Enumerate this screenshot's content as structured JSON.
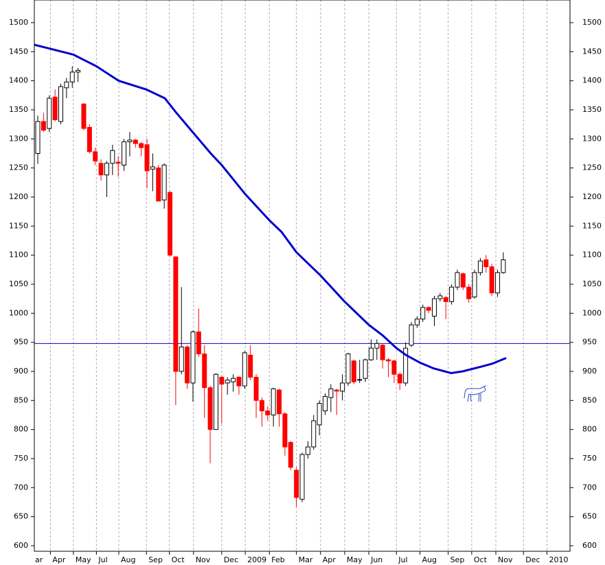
{
  "chart_data": {
    "type": "candlestick",
    "xlim": [
      -0.6,
      92.6
    ],
    "ylim": [
      590.5,
      1539
    ],
    "yticks": [
      600,
      650,
      700,
      750,
      800,
      850,
      900,
      950,
      1000,
      1050,
      1100,
      1150,
      1200,
      1250,
      1300,
      1350,
      1400,
      1450,
      1500
    ],
    "xticks": [
      {
        "value": -1.8,
        "label": "ar"
      },
      {
        "value": 2.2,
        "label": "Apr"
      },
      {
        "value": 6.2,
        "label": "May"
      },
      {
        "value": 10.2,
        "label": "Jul"
      },
      {
        "value": 14.1,
        "label": "Aug"
      },
      {
        "value": 18.9,
        "label": "Sep"
      },
      {
        "value": 22.9,
        "label": "Oct"
      },
      {
        "value": 27.1,
        "label": "Nov"
      },
      {
        "value": 32.0,
        "label": "Dec"
      },
      {
        "value": 36.1,
        "label": "2009"
      },
      {
        "value": 40.3,
        "label": "Feb"
      },
      {
        "value": 45.0,
        "label": "Mar"
      },
      {
        "value": 49.2,
        "label": "Apr"
      },
      {
        "value": 53.4,
        "label": "May"
      },
      {
        "value": 57.6,
        "label": "Jun"
      },
      {
        "value": 62.4,
        "label": "Jul"
      },
      {
        "value": 66.5,
        "label": "Aug"
      },
      {
        "value": 71.4,
        "label": "Sep"
      },
      {
        "value": 75.5,
        "label": "Oct"
      },
      {
        "value": 79.7,
        "label": "Nov"
      },
      {
        "value": 84.5,
        "label": "Dec"
      },
      {
        "value": 88.6,
        "label": "2010"
      }
    ],
    "grid": "x",
    "up_color": "#ffffff",
    "down_color": "#ff0000",
    "open": [
      1275,
      1330,
      1318,
      1372,
      1330,
      1388,
      1398,
      1415,
      1360,
      1320,
      1278,
      1258,
      1238,
      1258,
      1260,
      1255,
      1295,
      1298,
      1292,
      1290,
      1248,
      1250,
      1195,
      1208,
      1097,
      900,
      942,
      880,
      968,
      930,
      872,
      800,
      890,
      880,
      882,
      890,
      875,
      928,
      890,
      850,
      832,
      825,
      868,
      827,
      778,
      730,
      680,
      757,
      770,
      808,
      832,
      855,
      868,
      866,
      880,
      918,
      885,
      888,
      920,
      940,
      945,
      920,
      918,
      895,
      880,
      945,
      980,
      990,
      1010,
      995,
      1025,
      1027,
      1020,
      1045,
      1068,
      1045,
      1028,
      1070,
      1092,
      1080,
      1035,
      1070
    ],
    "high": [
      1340,
      1345,
      1375,
      1385,
      1395,
      1405,
      1425,
      1422,
      1362,
      1325,
      1285,
      1265,
      1262,
      1290,
      1270,
      1300,
      1312,
      1300,
      1295,
      1300,
      1275,
      1255,
      1258,
      1210,
      1098,
      1045,
      945,
      970,
      1008,
      945,
      875,
      897,
      892,
      890,
      895,
      892,
      935,
      945,
      895,
      855,
      840,
      872,
      870,
      830,
      780,
      735,
      760,
      780,
      825,
      850,
      862,
      878,
      870,
      895,
      932,
      920,
      920,
      922,
      955,
      955,
      948,
      923,
      920,
      898,
      950,
      985,
      995,
      1015,
      1012,
      1030,
      1035,
      1030,
      1050,
      1075,
      1070,
      1050,
      1075,
      1095,
      1100,
      1085,
      1075,
      1105
    ],
    "low": [
      1257,
      1312,
      1312,
      1330,
      1325,
      1370,
      1388,
      1398,
      1315,
      1275,
      1255,
      1228,
      1200,
      1238,
      1235,
      1245,
      1270,
      1285,
      1270,
      1215,
      1210,
      1193,
      1180,
      1098,
      842,
      895,
      870,
      848,
      925,
      820,
      742,
      800,
      810,
      860,
      865,
      860,
      870,
      885,
      820,
      805,
      815,
      805,
      805,
      755,
      730,
      667,
      675,
      750,
      765,
      790,
      825,
      830,
      825,
      850,
      875,
      878,
      880,
      882,
      918,
      920,
      905,
      890,
      880,
      868,
      875,
      942,
      975,
      985,
      1000,
      978,
      1020,
      990,
      1015,
      1040,
      1040,
      1018,
      1025,
      1065,
      1070,
      1030,
      1028,
      1068
    ],
    "close": [
      1330,
      1315,
      1370,
      1333,
      1390,
      1398,
      1415,
      1418,
      1318,
      1278,
      1262,
      1238,
      1258,
      1280,
      1258,
      1295,
      1298,
      1292,
      1285,
      1245,
      1252,
      1193,
      1255,
      1100,
      900,
      942,
      880,
      968,
      930,
      872,
      800,
      895,
      878,
      885,
      888,
      875,
      932,
      890,
      850,
      832,
      825,
      870,
      827,
      770,
      735,
      683,
      757,
      770,
      815,
      845,
      857,
      870,
      866,
      880,
      930,
      882,
      886,
      920,
      940,
      948,
      920,
      918,
      895,
      880,
      940,
      980,
      990,
      1010,
      1005,
      1025,
      1030,
      1020,
      1045,
      1070,
      1045,
      1025,
      1070,
      1090,
      1080,
      1035,
      1070,
      1092
    ],
    "ma": {
      "color": "#0000cc",
      "x": [
        -0.6,
        2.2,
        6.2,
        10.2,
        14.1,
        18.9,
        22.1,
        24.1,
        27.1,
        30.1,
        32.0,
        36.1,
        40.3,
        42.4,
        45.0,
        49.2,
        53.4,
        57.6,
        60.0,
        62.4,
        64.1,
        66.5,
        68.9,
        71.9,
        73.9,
        77.1,
        79.0,
        81.5
      ],
      "values": [
        1462,
        1455,
        1445,
        1425,
        1400,
        1385,
        1370,
        1345,
        1310,
        1275,
        1255,
        1205,
        1160,
        1140,
        1105,
        1065,
        1020,
        980,
        962,
        940,
        928,
        915,
        905,
        897,
        900,
        908,
        913,
        923
      ]
    },
    "hline": {
      "value": 948,
      "color": "#0000cc"
    }
  }
}
